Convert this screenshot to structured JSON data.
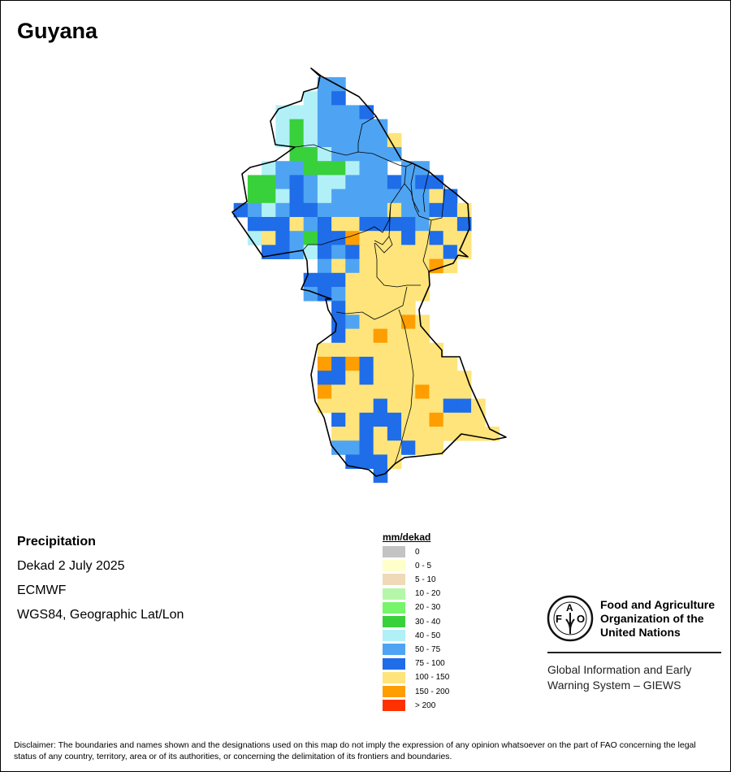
{
  "title": "Guyana",
  "info": {
    "variable": "Precipitation",
    "period": "Dekad 2 July 2025",
    "source": "ECMWF",
    "projection": "WGS84, Geographic Lat/Lon"
  },
  "legend": {
    "title": "mm/dekad",
    "items": [
      {
        "code": "Z",
        "label": "0",
        "color": "#c3c3c3"
      },
      {
        "code": "a",
        "label": "0 - 5",
        "color": "#ffffcc"
      },
      {
        "code": "b",
        "label": "5 - 10",
        "color": "#efd9b7"
      },
      {
        "code": "c",
        "label": "10 - 20",
        "color": "#b5f7a8"
      },
      {
        "code": "d",
        "label": "20 - 30",
        "color": "#76f56b"
      },
      {
        "code": "G",
        "label": "30 - 40",
        "color": "#38d13b"
      },
      {
        "code": "C",
        "label": "40 - 50",
        "color": "#b2f0f7"
      },
      {
        "code": "L",
        "label": "50 - 75",
        "color": "#4ea4f2"
      },
      {
        "code": "B",
        "label": "75 - 100",
        "color": "#1f6de8"
      },
      {
        "code": "Y",
        "label": "100 - 150",
        "color": "#fee47a"
      },
      {
        "code": "O",
        "label": "150 - 200",
        "color": "#fe9e00"
      },
      {
        "code": "R",
        "label": "> 200",
        "color": "#fe3200"
      }
    ]
  },
  "grid_classes": [
    "......LL............",
    ".....CLB............",
    "...CCCLLLB..........",
    "...CGCLLLLL.........",
    "...CGCLLLLLY........",
    "....GGCLLLLL........",
    "..CLLGGGCLL.LL......",
    ".GGLBLCCLLLBLBB.....",
    ".GGCBLCLLLLLLLYB....",
    "BLCLBBLLLLLYLLBBY...",
    ".BBBYLBYYBBBBLYYB...",
    ".CYBLGBBOYYYBYBYY...",
    "..BBLCBLBYYYYYYBY...",
    "......LYLYYYYYOY....",
    ".....BBBYYYYYY......",
    ".....LBLYYYYYY......",
    ".......BYYYYY.......",
    ".......BLYYYOY......",
    ".......BYYOYYY......",
    "......YYYYYYYYY.....",
    "......OBOBYYYYYY....",
    "......BBYBYYYYYYY...",
    "......OYYYYYYOYYY...",
    "......YYYYBYYYYBBY..",
    ".......BYBBBYYOYYY..",
    ".......YYBYBYYYYYYY.",
    ".......LLBYYBYY.....",
    "........BBBY........",
    "..........B........."
  ],
  "fao": {
    "logo_text": "FAO FIAT PANIS",
    "name_lines": [
      "Food and Agriculture",
      "Organization of the",
      "United Nations"
    ],
    "giews_lines": [
      "Global Information and Early",
      "Warning System – GIEWS"
    ]
  },
  "disclaimer": "Disclaimer: The boundaries and names shown and the designations used on this map do not imply the expression of any opinion whatsoever on the part of FAO concerning the legal status of any country, territory, area or of its authorities, or concerning the delimitation of its frontiers and boundaries."
}
